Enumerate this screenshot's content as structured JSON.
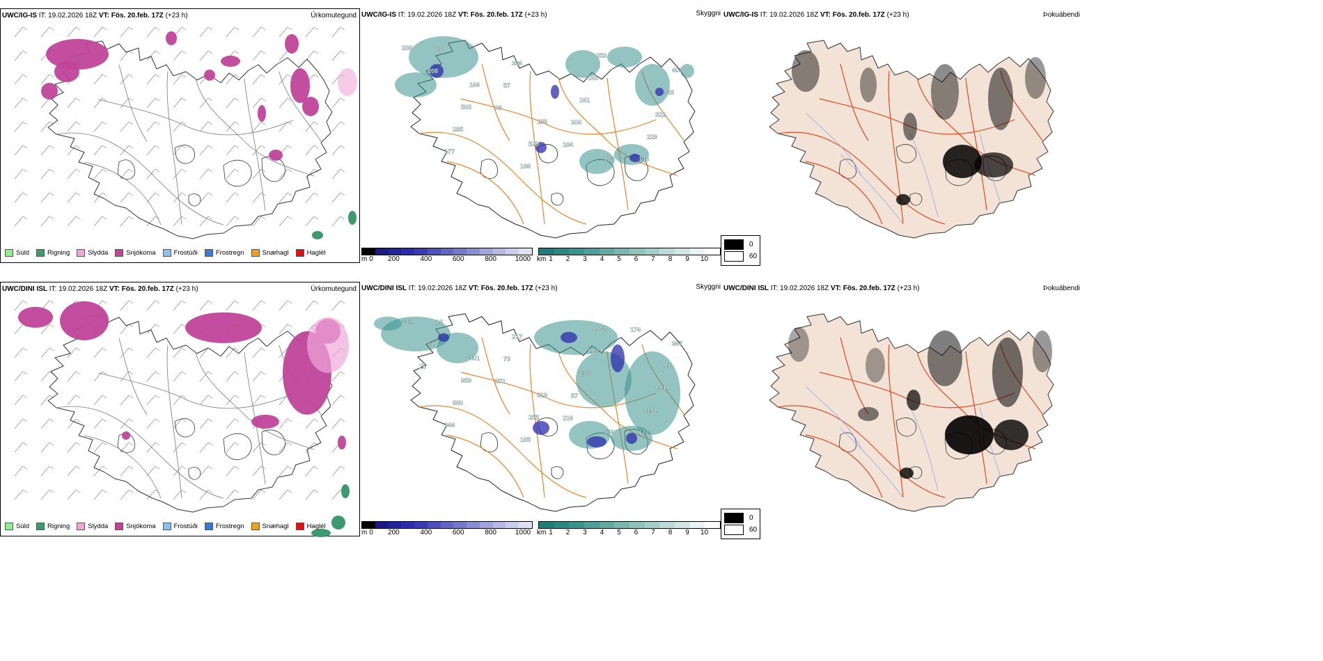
{
  "rows": [
    {
      "model": "UWC/IG-IS",
      "model_alt": "UWC/IG-IS",
      "it_label": "IT:",
      "it_value": "19.02.2026 18Z",
      "vt_label": "VT:",
      "vt_value": "Fös. 20.feb. 17Z",
      "lead": "(+23 h)",
      "precip_type_title": "Úrkomutegund",
      "visibility_title": "Skyggni",
      "fog_title": "Þokuábendi"
    },
    {
      "model": "UWC/DINI ISL",
      "model_alt": "UWC/DINI ISL",
      "it_label": "IT:",
      "it_value": "19.02.2026 18Z",
      "vt_label": "VT:",
      "vt_value": "Fös. 20.feb. 17Z",
      "lead": "(+23 h)",
      "precip_type_title": "Úrkomutegund",
      "visibility_title": "Skyggni",
      "fog_title": "Þokuábendi"
    }
  ],
  "precip_legend": [
    {
      "label": "Súld",
      "color": "#90ee90"
    },
    {
      "label": "Rigning",
      "color": "#3c9a6e"
    },
    {
      "label": "Slydda",
      "color": "#f0a8d8"
    },
    {
      "label": "Snjókoma",
      "color": "#c0449a"
    },
    {
      "label": "Frostúði",
      "color": "#8cc0f0"
    },
    {
      "label": "Frostregn",
      "color": "#3a7ad0"
    },
    {
      "label": "Snæhagl",
      "color": "#f0a020"
    },
    {
      "label": "Haglél",
      "color": "#e01010"
    }
  ],
  "ceiling_bar": {
    "unit": "m",
    "ticks": [
      "0",
      "200",
      "400",
      "600",
      "800",
      "1000"
    ],
    "colors": [
      "#000000",
      "#1a1a80",
      "#22229a",
      "#2c2cac",
      "#3a3ab4",
      "#5050ba",
      "#6464c2",
      "#7878c8",
      "#8c8cd0",
      "#a4a4da",
      "#b8b8e2",
      "#ccccec",
      "#e0e0f4"
    ]
  },
  "vis_bar": {
    "unit": "km",
    "ticks": [
      "1",
      "2",
      "3",
      "4",
      "5",
      "6",
      "7",
      "8",
      "9",
      "10"
    ],
    "colors": [
      "#1e7d78",
      "#2a8882",
      "#3a948e",
      "#4e9f99",
      "#64aaa4",
      "#7ab6b0",
      "#90c2bc",
      "#a6cec8",
      "#bcdad6",
      "#d2e6e2",
      "#e8f2f0",
      "#ffffff"
    ]
  },
  "fog_legend": [
    {
      "label": "0",
      "color": "#000000"
    },
    {
      "label": "60",
      "color": "#ffffff"
    }
  ],
  "ceiling_labels_top": [
    "238",
    "166",
    "138",
    "164",
    "403",
    "503",
    "529",
    "253",
    "328",
    "285",
    "186",
    "165",
    "322",
    "177",
    "396",
    "161",
    "229",
    "16",
    "57",
    "308",
    "148",
    "208",
    "98",
    "184"
  ],
  "ceiling_labels_bottom": [
    "331",
    "401",
    "319",
    "549",
    "967",
    "959",
    "255",
    "962",
    "94",
    "880",
    "165",
    "294",
    "234",
    "344",
    "217",
    "236",
    "192",
    "18",
    "73",
    "57",
    "177",
    "120",
    "371",
    "216",
    "174",
    "25"
  ]
}
